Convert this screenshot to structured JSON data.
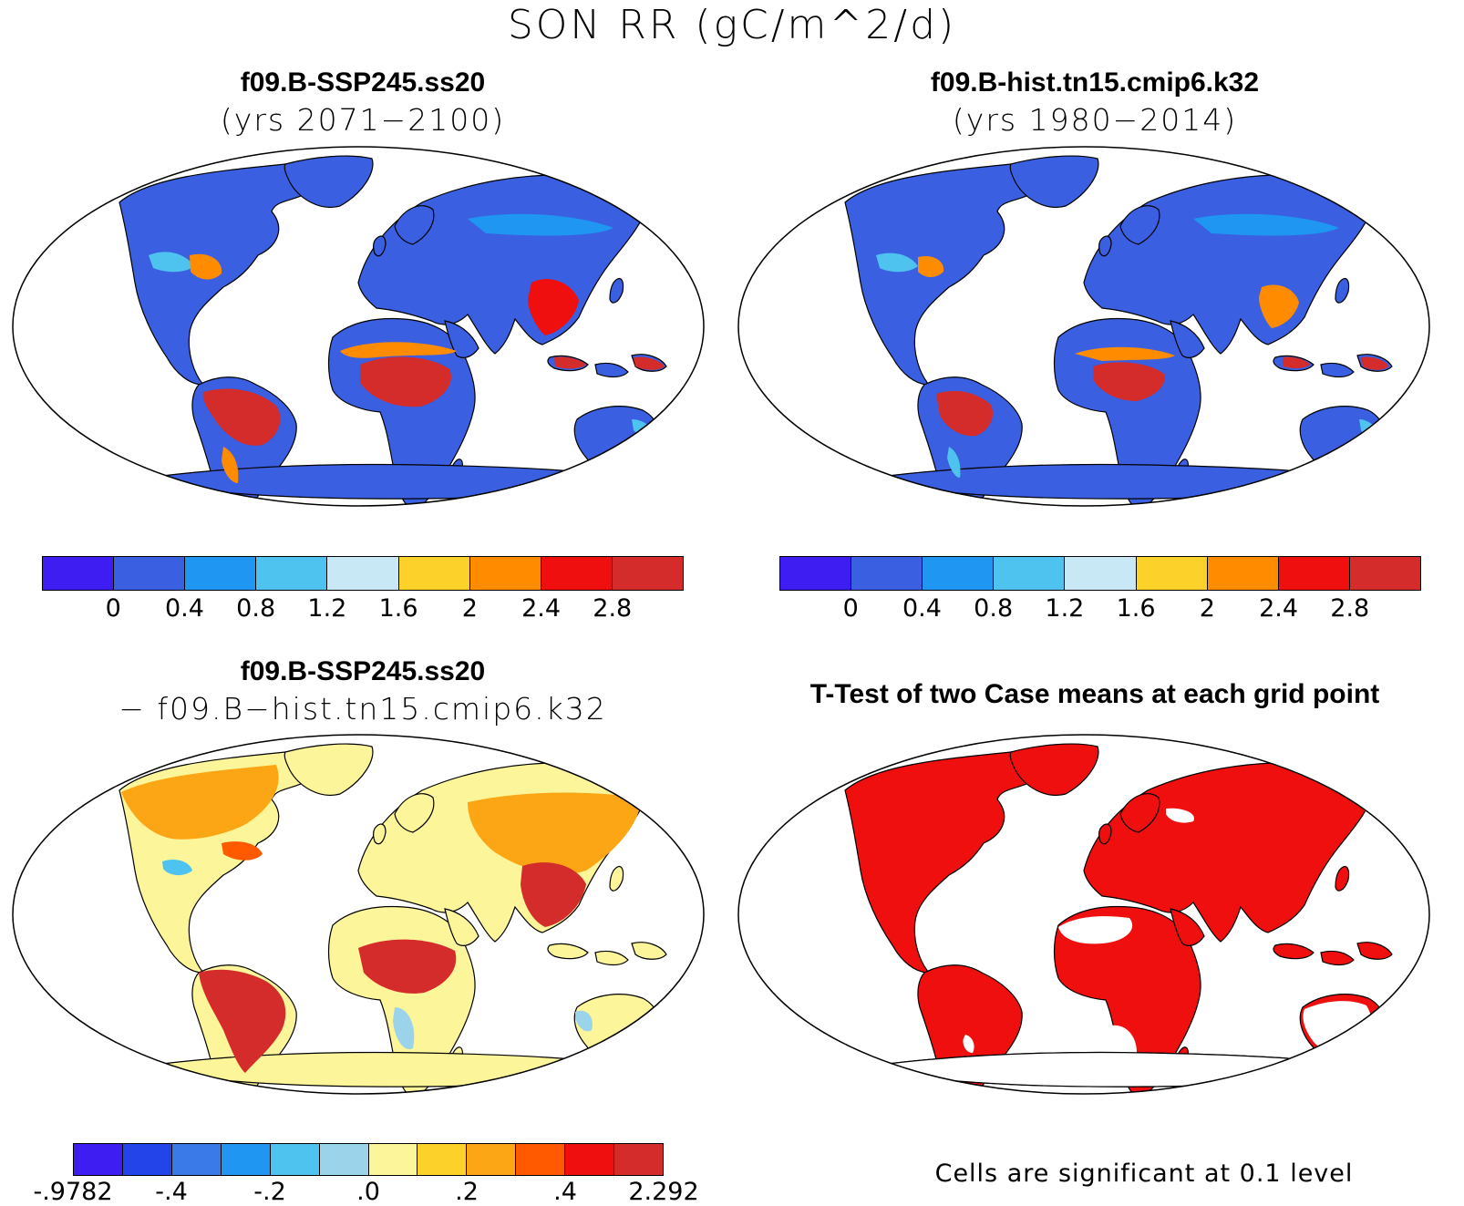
{
  "title": "SON RR (gC/m^2/d)",
  "panels": {
    "top_left": {
      "title": "f09.B-SSP245.ss20",
      "subtitle": "(yrs 2071−2100)",
      "kind": "absolute-rr"
    },
    "top_right": {
      "title": "f09.B-hist.tn15.cmip6.k32",
      "subtitle": "(yrs 1980−2014)",
      "kind": "absolute-rr"
    },
    "bottom_left": {
      "title": "f09.B-SSP245.ss20",
      "subtitle": "− f09.B−hist.tn15.cmip6.k32",
      "kind": "difference"
    },
    "bottom_right": {
      "title": "T-Test of two Case means at each grid point",
      "kind": "significance"
    }
  },
  "colorbars": {
    "absolute": {
      "colors": [
        "#3d1df2",
        "#3a5fe0",
        "#1e96f2",
        "#4fc3f0",
        "#c8e8f6",
        "#fcd12a",
        "#ff8c00",
        "#f00f0f",
        "#d42b2b"
      ],
      "ticks": [
        "0",
        "0.4",
        "0.8",
        "1.2",
        "1.6",
        "2",
        "2.4",
        "2.8"
      ]
    },
    "difference": {
      "colors": [
        "#3d1df2",
        "#2244e8",
        "#3a7ae8",
        "#1e96f2",
        "#4fc3f0",
        "#9bd3ea",
        "#fdf59a",
        "#fcd12a",
        "#fca616",
        "#ff5a00",
        "#f00f0f",
        "#d42b2b"
      ],
      "ticks": [
        "-.9782",
        "-.4",
        "-.2",
        ".0",
        ".2",
        ".4",
        "2.292"
      ]
    }
  },
  "significance": {
    "note": "Cells are significant at 0.1 level",
    "color": "#f00f0f"
  },
  "map_colors": {
    "ocean": "#ffffff",
    "coast": "#000000"
  }
}
